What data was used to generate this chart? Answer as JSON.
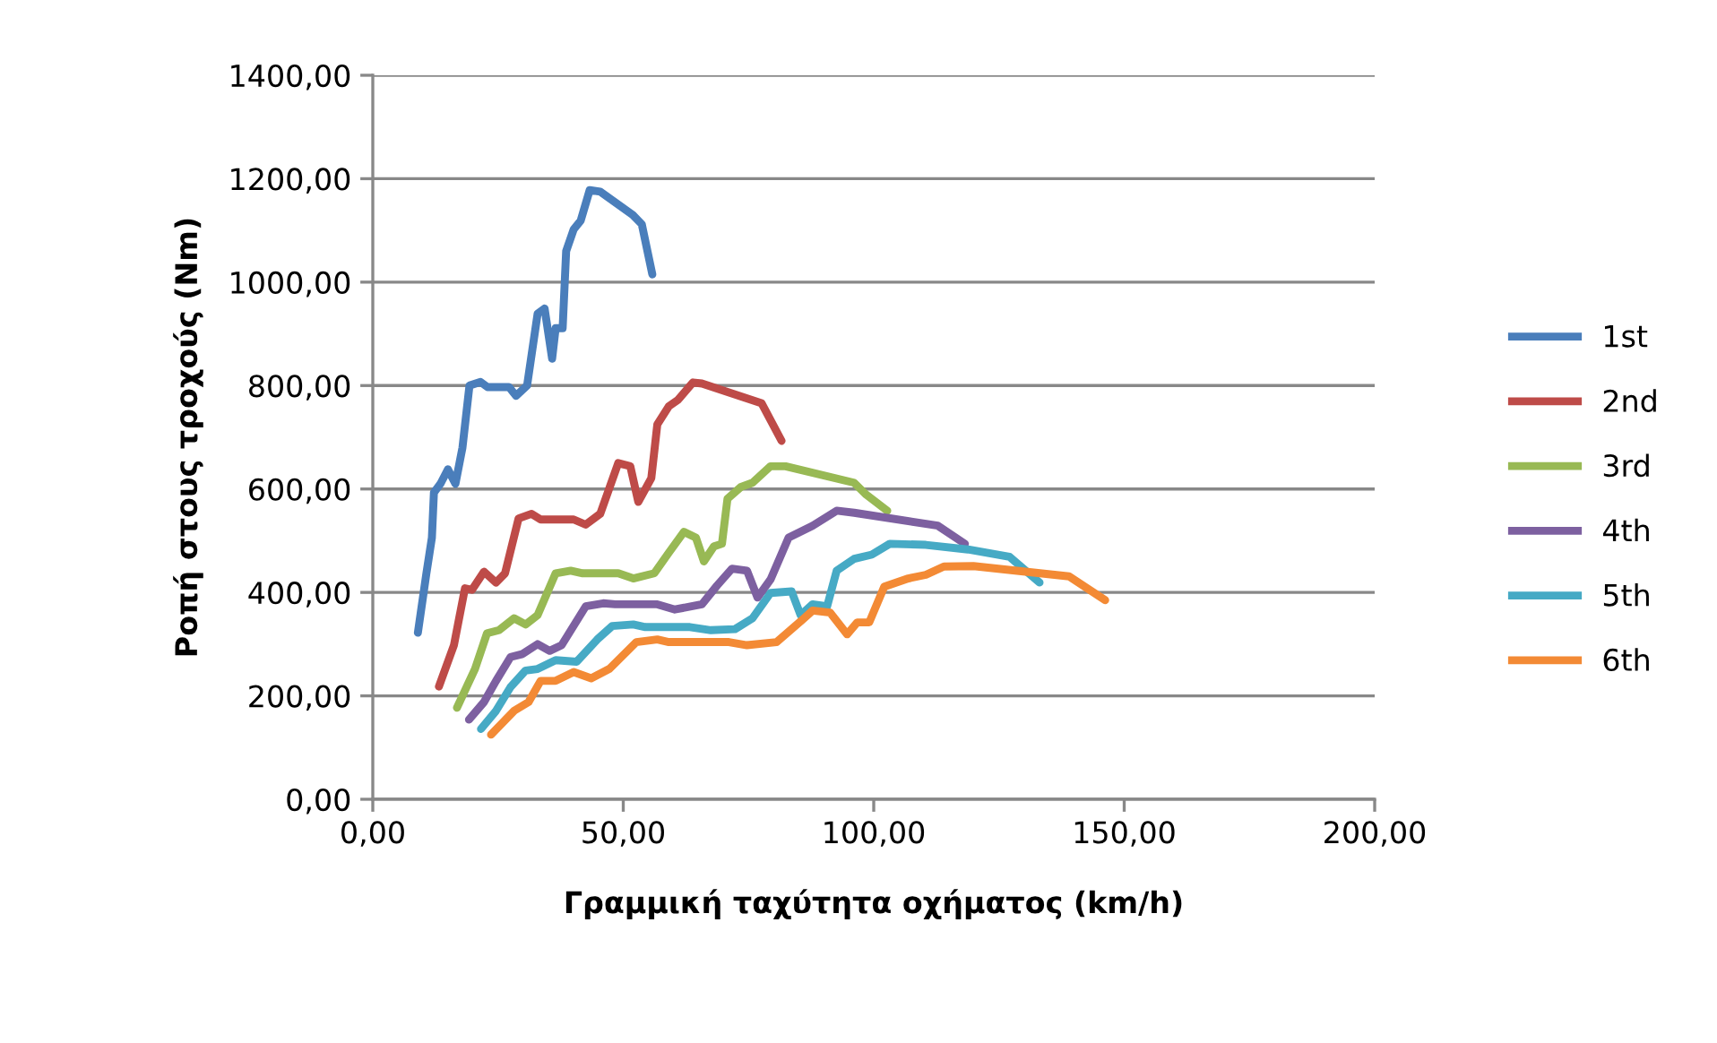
{
  "chart_data": {
    "type": "line",
    "xlabel": "Γραμμική ταχύτητα οχήματος (km/h)",
    "ylabel": "Ροπή στους τροχούς (Nm)",
    "xlim": [
      0,
      200
    ],
    "ylim": [
      0,
      1400
    ],
    "xticks": [
      {
        "value": 0,
        "label": "0,00"
      },
      {
        "value": 50,
        "label": "50,00"
      },
      {
        "value": 100,
        "label": "100,00"
      },
      {
        "value": 150,
        "label": "150,00"
      },
      {
        "value": 200,
        "label": "200,00"
      }
    ],
    "yticks": [
      {
        "value": 0,
        "label": "0,00"
      },
      {
        "value": 200,
        "label": "200,00"
      },
      {
        "value": 400,
        "label": "400,00"
      },
      {
        "value": 600,
        "label": "600,00"
      },
      {
        "value": 800,
        "label": "800,00"
      },
      {
        "value": 1000,
        "label": "1000,00"
      },
      {
        "value": 1200,
        "label": "1200,00"
      },
      {
        "value": 1400,
        "label": "1400,00"
      }
    ],
    "grid": "y",
    "legend": "right",
    "marker": "none",
    "line_style": "solid",
    "series": [
      {
        "name": "1st",
        "color": "#4a7ebb",
        "x": [
          9,
          10.7,
          11.8,
          12.2,
          13.5,
          15,
          16.5,
          17.9,
          19.3,
          21.5,
          22.9,
          27.2,
          28.6,
          30.8,
          32.9,
          34.3,
          35.8,
          36.5,
          37.9,
          38.6,
          40.1,
          41.5,
          43.3,
          45.4,
          51.9,
          53.7,
          55.8
        ],
        "values": [
          322,
          437,
          506,
          593,
          610,
          638,
          610,
          680,
          800,
          807,
          797,
          797,
          780,
          800,
          939,
          949,
          852,
          911,
          911,
          1060,
          1102,
          1119,
          1178,
          1175,
          1130,
          1112,
          1015
        ]
      },
      {
        "name": "2nd",
        "color": "#be4b48",
        "x": [
          13.2,
          16.2,
          18.4,
          19.8,
          22.2,
          24.6,
          26.4,
          29.1,
          31.7,
          33.5,
          40.1,
          42.5,
          45.4,
          49,
          51.4,
          53,
          55.6,
          56.8,
          59.1,
          60.9,
          63.9,
          65.7,
          77.6,
          81.6
        ],
        "values": [
          218,
          298,
          408,
          405,
          440,
          419,
          437,
          543,
          552,
          541,
          541,
          531,
          552,
          650,
          644,
          575,
          621,
          725,
          760,
          772,
          806,
          804,
          766,
          693
        ]
      },
      {
        "name": "3rd",
        "color": "#98b954",
        "x": [
          16.8,
          20.4,
          22.8,
          25.2,
          28.2,
          30.5,
          32.9,
          36.5,
          39.5,
          41.9,
          49,
          52,
          56.2,
          59.1,
          62.1,
          64.5,
          66.1,
          68.1,
          69.7,
          70.8,
          73.5,
          75.8,
          79.4,
          82.4,
          96.1,
          98.5,
          102.7
        ],
        "values": [
          177,
          252,
          321,
          327,
          350,
          338,
          356,
          437,
          442,
          437,
          437,
          427,
          437,
          477,
          517,
          506,
          460,
          489,
          494,
          581,
          604,
          612,
          644,
          644,
          612,
          589,
          558
        ]
      },
      {
        "name": "4th",
        "color": "#7d60a0",
        "x": [
          19.2,
          22.2,
          24.6,
          27.5,
          29.9,
          32.9,
          35.3,
          37.7,
          42.5,
          46,
          48.4,
          56.8,
          60.3,
          65.7,
          68.7,
          71.7,
          74.7,
          76.8,
          79.4,
          83,
          87.8,
          92.6,
          96.1,
          112.8,
          118.2
        ],
        "values": [
          154,
          188,
          229,
          275,
          281,
          300,
          287,
          298,
          373,
          379,
          377,
          377,
          367,
          377,
          413,
          446,
          442,
          390,
          425,
          506,
          529,
          558,
          554,
          529,
          494
        ]
      },
      {
        "name": "5th",
        "color": "#46aac5",
        "x": [
          21.6,
          24.6,
          27.5,
          30.5,
          32.9,
          36.5,
          40.7,
          44.8,
          47.8,
          52,
          54.4,
          63.3,
          67.5,
          72.3,
          75.8,
          79.4,
          83.6,
          85.4,
          87.8,
          90.7,
          92.6,
          96.1,
          99.6,
          103.2,
          110.4,
          118.8,
          127.1,
          133.1
        ],
        "values": [
          136,
          171,
          217,
          249,
          252,
          269,
          266,
          309,
          335,
          338,
          333,
          333,
          327,
          329,
          350,
          399,
          402,
          356,
          377,
          373,
          442,
          465,
          473,
          494,
          492,
          483,
          469,
          419
        ]
      },
      {
        "name": "6th",
        "color": "#f38a35",
        "x": [
          23.6,
          28.2,
          31.1,
          33.5,
          36.5,
          40.1,
          43.6,
          47.2,
          52.6,
          56.8,
          59.1,
          71.1,
          74.7,
          80.6,
          85.4,
          87.8,
          91.3,
          94.7,
          96.7,
          99.1,
          102.1,
          106.9,
          110.4,
          114,
          119.9,
          139,
          146.2
        ],
        "values": [
          125,
          171,
          188,
          229,
          229,
          246,
          234,
          252,
          304,
          309,
          304,
          304,
          298,
          304,
          344,
          365,
          361,
          319,
          342,
          342,
          411,
          427,
          434,
          450,
          451,
          431,
          385
        ]
      }
    ]
  }
}
